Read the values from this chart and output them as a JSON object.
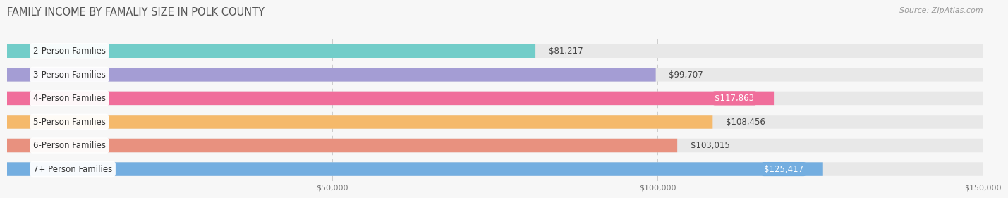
{
  "title": "FAMILY INCOME BY FAMALIY SIZE IN POLK COUNTY",
  "source": "Source: ZipAtlas.com",
  "categories": [
    "2-Person Families",
    "3-Person Families",
    "4-Person Families",
    "5-Person Families",
    "6-Person Families",
    "7+ Person Families"
  ],
  "values": [
    81217,
    99707,
    117863,
    108456,
    103015,
    125417
  ],
  "bar_colors": [
    "#72cdc9",
    "#a49dd4",
    "#f06e9b",
    "#f5b96b",
    "#e8917f",
    "#74aee0"
  ],
  "value_inside": [
    false,
    false,
    true,
    false,
    false,
    true
  ],
  "xlim": [
    0,
    150000
  ],
  "xtick_vals": [
    50000,
    100000,
    150000
  ],
  "xtick_labels": [
    "$50,000",
    "$100,000",
    "$150,000"
  ],
  "background_color": "#f7f7f7",
  "bar_bg_color": "#e8e8e8",
  "title_fontsize": 10.5,
  "source_fontsize": 8,
  "cat_fontsize": 8.5,
  "value_fontsize": 8.5,
  "bar_height": 0.58
}
